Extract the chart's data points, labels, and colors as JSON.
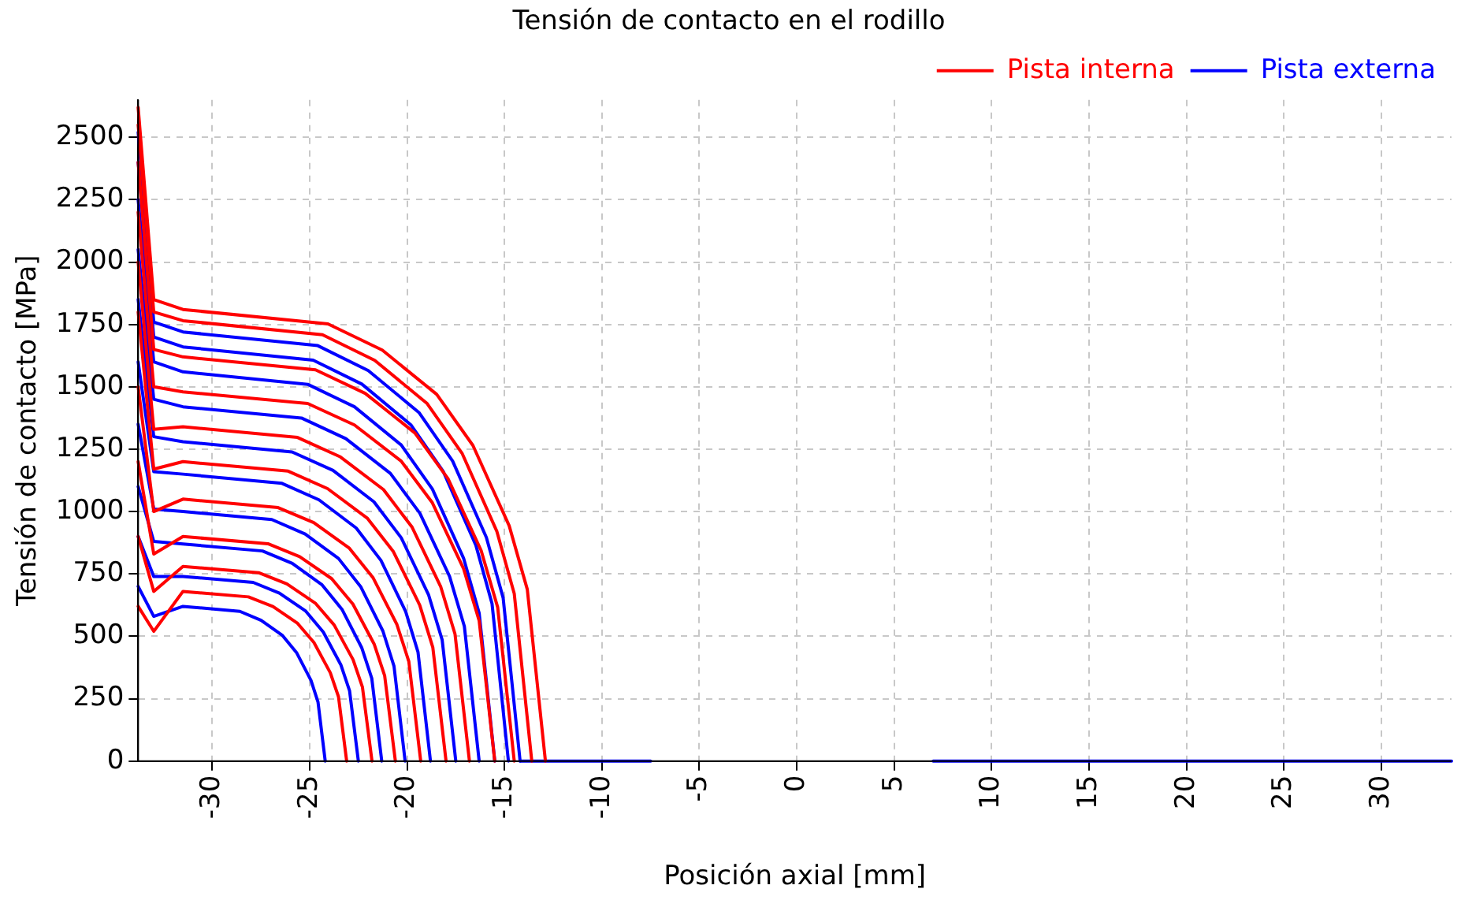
{
  "chart_data": {
    "type": "line",
    "title": "Tensión de contacto en el rodillo",
    "xlabel": "Posición axial [mm]",
    "ylabel": "Tensión de contacto [MPa]",
    "xlim": [
      -33.8,
      33.6
    ],
    "xticks": [
      -30,
      -25,
      -20,
      -15,
      -10,
      -5,
      0,
      5,
      10,
      15,
      20,
      25,
      30
    ],
    "ylim": [
      0,
      2650
    ],
    "yticks": [
      0,
      250,
      500,
      750,
      1000,
      1250,
      1500,
      1750,
      2000,
      2250,
      2500
    ],
    "grid": true,
    "legend": "top right",
    "marker": "none",
    "line_style": "solid",
    "series": [
      {
        "name": "Pista interna",
        "color": "#ff0000",
        "x": [
          -33.8,
          -33,
          -31.5,
          -24.06,
          -21.27,
          -18.48,
          -16.62,
          -14.76,
          -13.83,
          -12.9
        ],
        "values": [
          2620,
          1850,
          1810,
          1752,
          1647,
          1470,
          1265,
          943,
          688,
          0
        ]
      },
      {
        "color": "#ff0000",
        "x": [
          -33.8,
          -33,
          -31.5,
          -24.34,
          -21.66,
          -18.97,
          -17.18,
          -15.39,
          -14.5,
          -13.6
        ],
        "values": [
          2550,
          1800,
          1765,
          1709,
          1606,
          1433,
          1234,
          920,
          671,
          0
        ]
      },
      {
        "color": "#ff0000",
        "x": [
          -33.8,
          -33,
          -31.5,
          -24.7,
          -22.15,
          -19.6,
          -17.9,
          -16.2,
          -15.35,
          -14.5
        ],
        "values": [
          2400,
          1650,
          1620,
          1568,
          1474,
          1315,
          1132,
          844,
          616,
          0
        ]
      },
      {
        "color": "#ff0000",
        "x": [
          -33.8,
          -33,
          -31.5,
          -25.1,
          -22.7,
          -20.3,
          -18.7,
          -17.1,
          -16.3,
          -15.5
        ],
        "values": [
          2200,
          1500,
          1480,
          1433,
          1347,
          1202,
          1035,
          771,
          562,
          0
        ]
      },
      {
        "color": "#ff0000",
        "x": [
          -33.8,
          -33,
          -31.5,
          -25.62,
          -23.42,
          -21.21,
          -19.74,
          -18.27,
          -17.54,
          -16.8
        ],
        "values": [
          2000,
          1330,
          1340,
          1297,
          1219,
          1088,
          937,
          698,
          509,
          0
        ]
      },
      {
        "color": "#ff0000",
        "x": [
          -33.8,
          -33,
          -31.5,
          -26.1,
          -24.08,
          -22.05,
          -20.7,
          -19.35,
          -18.68,
          -18
        ],
        "values": [
          1800,
          1170,
          1200,
          1162,
          1092,
          974,
          839,
          625,
          456,
          0
        ]
      },
      {
        "color": "#ff0000",
        "x": [
          -33.8,
          -33,
          -31.5,
          -26.62,
          -24.79,
          -22.96,
          -21.74,
          -20.52,
          -19.91,
          -19.3
        ],
        "values": [
          1500,
          1000,
          1050,
          1016,
          956,
          853,
          734,
          547,
          399,
          0
        ]
      },
      {
        "color": "#ff0000",
        "x": [
          -33.8,
          -33,
          -31.5,
          -27.14,
          -25.51,
          -23.87,
          -22.78,
          -21.69,
          -21.15,
          -20.6
        ],
        "values": [
          1200,
          830,
          900,
          871,
          819,
          731,
          629,
          469,
          342,
          0
        ]
      },
      {
        "color": "#ff0000",
        "x": [
          -33.8,
          -33,
          -31.5,
          -27.62,
          -26.17,
          -24.71,
          -23.74,
          -22.77,
          -22.29,
          -21.8
        ],
        "values": [
          900,
          680,
          780,
          755,
          710,
          633,
          545,
          406,
          296,
          0
        ]
      },
      {
        "color": "#ff0000",
        "x": [
          -33.8,
          -33,
          -31.5,
          -28.14,
          -26.88,
          -25.62,
          -24.78,
          -23.94,
          -23.52,
          -23.1
        ],
        "values": [
          620,
          520,
          680,
          658,
          619,
          552,
          475,
          354,
          258,
          0
        ]
      },
      {
        "name": "Pista externa",
        "color": "#0000ff",
        "x": [
          -33.8,
          -33,
          -31.5,
          -24.58,
          -21.99,
          -19.39,
          -17.66,
          -15.93,
          -15.07,
          -14.2
        ],
        "values": [
          2520,
          1760,
          1720,
          1665,
          1565,
          1397,
          1202,
          896,
          654,
          0
        ]
      },
      {
        "color": "#0000ff",
        "x": [
          -33.8,
          -33,
          -31.5,
          -24.82,
          -22.32,
          -19.81,
          -18.14,
          -16.47,
          -15.64,
          -14.8
        ],
        "values": [
          2400,
          1700,
          1660,
          1607,
          1511,
          1348,
          1160,
          865,
          631,
          0
        ]
      },
      {
        "color": "#0000ff",
        "x": [
          -33.8,
          -33,
          -31.5,
          -25.1,
          -22.7,
          -20.3,
          -18.7,
          -17.1,
          -16.3,
          -15.5
        ],
        "values": [
          2250,
          1600,
          1560,
          1510,
          1420,
          1267,
          1090,
          813,
          593,
          0
        ]
      },
      {
        "color": "#0000ff",
        "x": [
          -33.8,
          -33,
          -31.5,
          -25.42,
          -23.14,
          -20.86,
          -19.34,
          -17.82,
          -17.06,
          -16.3
        ],
        "values": [
          2050,
          1450,
          1420,
          1375,
          1292,
          1153,
          993,
          740,
          540,
          0
        ]
      },
      {
        "color": "#0000ff",
        "x": [
          -33.8,
          -33,
          -31.5,
          -25.9,
          -23.8,
          -21.7,
          -20.3,
          -18.9,
          -18.2,
          -17.5
        ],
        "values": [
          1850,
          1300,
          1280,
          1239,
          1165,
          1039,
          895,
          667,
          486,
          0
        ]
      },
      {
        "color": "#0000ff",
        "x": [
          -33.8,
          -33,
          -31.5,
          -26.42,
          -24.52,
          -22.61,
          -21.34,
          -20.07,
          -19.44,
          -18.8
        ],
        "values": [
          1600,
          1160,
          1150,
          1113,
          1047,
          934,
          804,
          599,
          437,
          0
        ]
      },
      {
        "color": "#0000ff",
        "x": [
          -33.8,
          -33,
          -31.5,
          -26.94,
          -25.23,
          -23.52,
          -22.38,
          -21.24,
          -20.67,
          -20.1
        ],
        "values": [
          1350,
          1010,
          1000,
          968,
          910,
          812,
          699,
          521,
          380,
          0
        ]
      },
      {
        "color": "#0000ff",
        "x": [
          -33.8,
          -33,
          -31.5,
          -27.42,
          -25.89,
          -24.36,
          -23.34,
          -22.32,
          -21.81,
          -21.3
        ],
        "values": [
          1100,
          880,
          870,
          842,
          792,
          706,
          608,
          453,
          331,
          0
        ]
      },
      {
        "color": "#0000ff",
        "x": [
          -33.8,
          -33,
          -31.5,
          -27.9,
          -26.55,
          -25.2,
          -24.3,
          -23.4,
          -22.95,
          -22.5
        ],
        "values": [
          900,
          740,
          740,
          716,
          673,
          601,
          517,
          386,
          281,
          0
        ]
      },
      {
        "color": "#0000ff",
        "x": [
          -33.8,
          -33,
          -31.5,
          -28.58,
          -27.49,
          -26.39,
          -25.66,
          -24.93,
          -24.57,
          -24.2
        ],
        "values": [
          700,
          580,
          620,
          600,
          564,
          503,
          433,
          323,
          236,
          0
        ]
      },
      {
        "color": "#0000ff",
        "x": [
          -14.2,
          -7.5,
          0,
          7,
          33.6
        ],
        "values": [
          0,
          0,
          null,
          0,
          0
        ]
      }
    ]
  }
}
